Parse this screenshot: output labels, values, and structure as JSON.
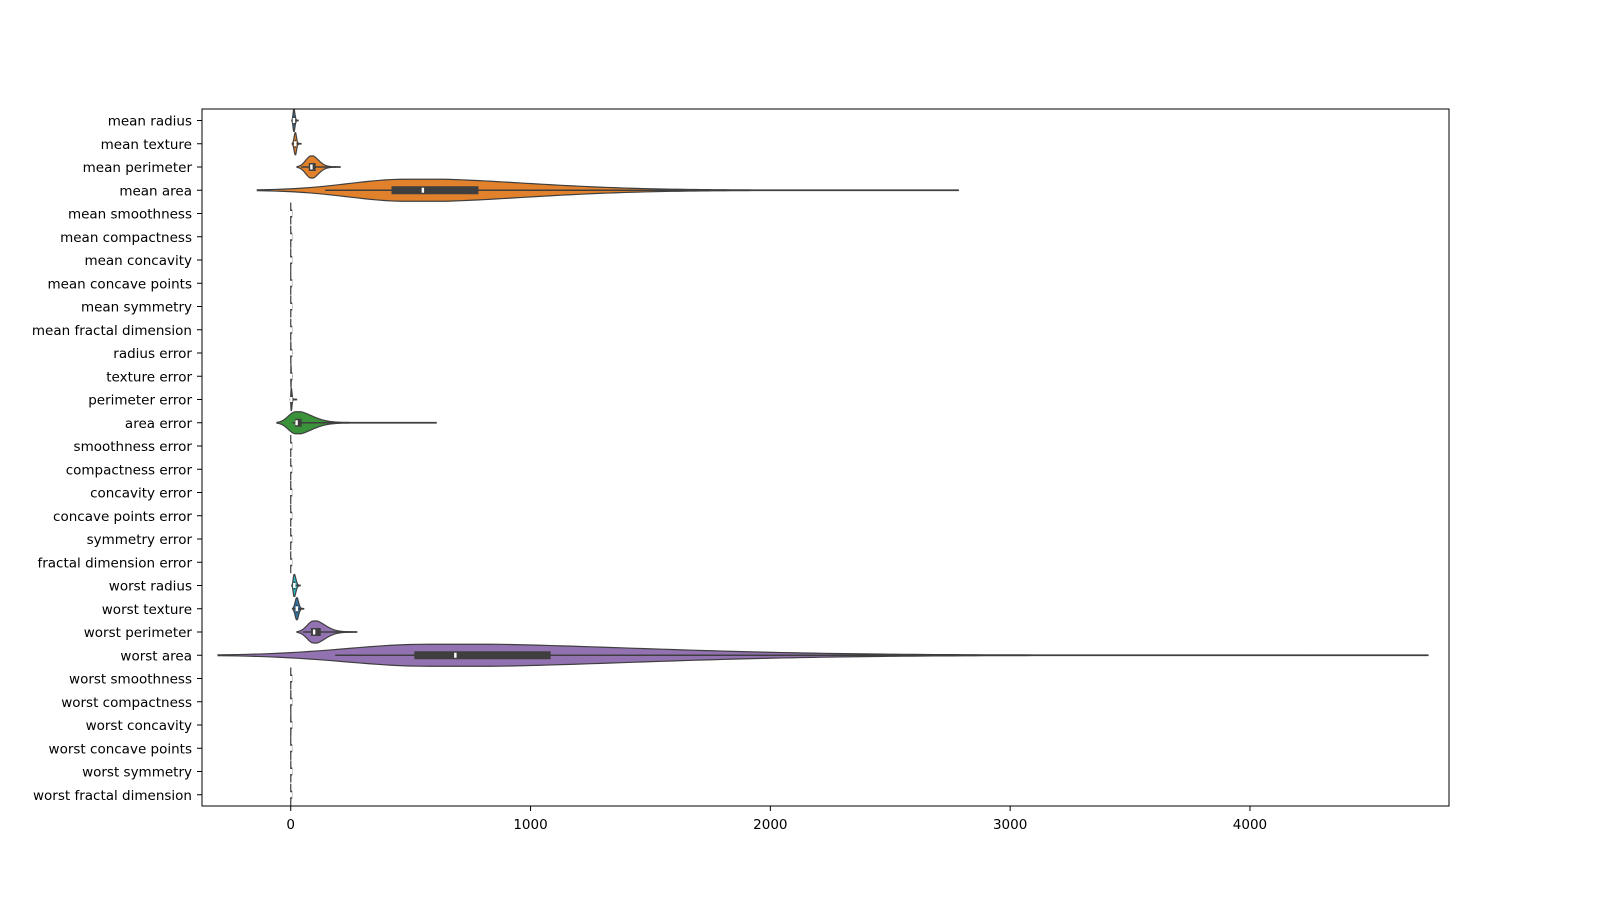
{
  "chart_data": {
    "type": "violin",
    "orientation": "horizontal",
    "title": "",
    "xlabel": "",
    "ylabel": "",
    "xlim": [
      -370,
      4830
    ],
    "xticks": [
      0,
      1000,
      2000,
      3000,
      4000
    ],
    "grid": false,
    "legend": "none",
    "series": [
      {
        "name": "mean radius",
        "color": "#3274a1",
        "min": 6.98,
        "q1": 11.7,
        "median": 13.37,
        "q3": 15.78,
        "max": 28.11,
        "mode": 13.0
      },
      {
        "name": "mean texture",
        "color": "#e1812c",
        "min": 9.71,
        "q1": 16.17,
        "median": 18.84,
        "q3": 21.8,
        "max": 39.28,
        "mode": 19.0
      },
      {
        "name": "mean perimeter",
        "color": "#e1812c",
        "min": 43.79,
        "q1": 75.17,
        "median": 86.24,
        "q3": 104.1,
        "max": 188.5,
        "mode": 85.0
      },
      {
        "name": "mean area",
        "color": "#e1812c",
        "min": 143.5,
        "q1": 420.3,
        "median": 551.1,
        "q3": 782.7,
        "max": 2501.0,
        "mode": 480.0
      },
      {
        "name": "mean smoothness",
        "color": "#3a923a",
        "min": 0.05,
        "q1": 0.086,
        "median": 0.096,
        "q3": 0.105,
        "max": 0.163,
        "mode": 0.096
      },
      {
        "name": "mean compactness",
        "color": "#c03d3e",
        "min": 0.019,
        "q1": 0.065,
        "median": 0.093,
        "q3": 0.13,
        "max": 0.345,
        "mode": 0.08
      },
      {
        "name": "mean concavity",
        "color": "#9372b2",
        "min": 0.0,
        "q1": 0.03,
        "median": 0.062,
        "q3": 0.131,
        "max": 0.427,
        "mode": 0.03
      },
      {
        "name": "mean concave points",
        "color": "#845b53",
        "min": 0.0,
        "q1": 0.02,
        "median": 0.034,
        "q3": 0.074,
        "max": 0.201,
        "mode": 0.02
      },
      {
        "name": "mean symmetry",
        "color": "#d684bd",
        "min": 0.106,
        "q1": 0.162,
        "median": 0.179,
        "q3": 0.196,
        "max": 0.304,
        "mode": 0.18
      },
      {
        "name": "mean fractal dimension",
        "color": "#7f7f7f",
        "min": 0.05,
        "q1": 0.058,
        "median": 0.062,
        "q3": 0.066,
        "max": 0.097,
        "mode": 0.061
      },
      {
        "name": "radius error",
        "color": "#a9aa35",
        "min": 0.112,
        "q1": 0.232,
        "median": 0.324,
        "q3": 0.479,
        "max": 2.873,
        "mode": 0.3
      },
      {
        "name": "texture error",
        "color": "#2ebece",
        "min": 0.36,
        "q1": 0.834,
        "median": 1.108,
        "q3": 1.474,
        "max": 4.885,
        "mode": 1.0
      },
      {
        "name": "perimeter error",
        "color": "#3274a1",
        "min": 0.757,
        "q1": 1.606,
        "median": 2.287,
        "q3": 3.357,
        "max": 21.98,
        "mode": 2.0
      },
      {
        "name": "area error",
        "color": "#3a923a",
        "min": 6.802,
        "q1": 17.85,
        "median": 24.53,
        "q3": 45.19,
        "max": 542.2,
        "mode": 20.0
      },
      {
        "name": "smoothness error",
        "color": "#c03d3e",
        "min": 0.002,
        "q1": 0.005,
        "median": 0.006,
        "q3": 0.008,
        "max": 0.031,
        "mode": 0.006
      },
      {
        "name": "compactness error",
        "color": "#9372b2",
        "min": 0.002,
        "q1": 0.013,
        "median": 0.02,
        "q3": 0.032,
        "max": 0.135,
        "mode": 0.015
      },
      {
        "name": "concavity error",
        "color": "#845b53",
        "min": 0.0,
        "q1": 0.015,
        "median": 0.026,
        "q3": 0.042,
        "max": 0.396,
        "mode": 0.02
      },
      {
        "name": "concave points error",
        "color": "#d684bd",
        "min": 0.0,
        "q1": 0.008,
        "median": 0.011,
        "q3": 0.015,
        "max": 0.053,
        "mode": 0.01
      },
      {
        "name": "symmetry error",
        "color": "#7f7f7f",
        "min": 0.008,
        "q1": 0.015,
        "median": 0.019,
        "q3": 0.023,
        "max": 0.079,
        "mode": 0.018
      },
      {
        "name": "fractal dimension error",
        "color": "#a9aa35",
        "min": 0.001,
        "q1": 0.002,
        "median": 0.003,
        "q3": 0.005,
        "max": 0.03,
        "mode": 0.003
      },
      {
        "name": "worst radius",
        "color": "#2ebece",
        "min": 7.93,
        "q1": 13.01,
        "median": 14.97,
        "q3": 18.79,
        "max": 36.04,
        "mode": 14.0
      },
      {
        "name": "worst texture",
        "color": "#3274a1",
        "min": 12.02,
        "q1": 21.08,
        "median": 25.41,
        "q3": 29.72,
        "max": 49.54,
        "mode": 25.0
      },
      {
        "name": "worst perimeter",
        "color": "#9372b2",
        "min": 50.41,
        "q1": 84.11,
        "median": 97.66,
        "q3": 125.4,
        "max": 251.2,
        "mode": 95.0
      },
      {
        "name": "worst area",
        "color": "#9372b2",
        "min": 185.2,
        "q1": 515.3,
        "median": 686.5,
        "q3": 1084.0,
        "max": 4254.0,
        "mode": 570.0
      },
      {
        "name": "worst smoothness",
        "color": "#c03d3e",
        "min": 0.071,
        "q1": 0.117,
        "median": 0.131,
        "q3": 0.146,
        "max": 0.223,
        "mode": 0.13
      },
      {
        "name": "worst compactness",
        "color": "#9372b2",
        "min": 0.027,
        "q1": 0.147,
        "median": 0.212,
        "q3": 0.339,
        "max": 1.058,
        "mode": 0.2
      },
      {
        "name": "worst concavity",
        "color": "#845b53",
        "min": 0.0,
        "q1": 0.115,
        "median": 0.227,
        "q3": 0.383,
        "max": 1.252,
        "mode": 0.2
      },
      {
        "name": "worst concave points",
        "color": "#d684bd",
        "min": 0.0,
        "q1": 0.065,
        "median": 0.1,
        "q3": 0.161,
        "max": 0.291,
        "mode": 0.1
      },
      {
        "name": "worst symmetry",
        "color": "#7f7f7f",
        "min": 0.157,
        "q1": 0.25,
        "median": 0.282,
        "q3": 0.318,
        "max": 0.664,
        "mode": 0.28
      },
      {
        "name": "worst fractal dimension",
        "color": "#a9aa35",
        "min": 0.055,
        "q1": 0.071,
        "median": 0.08,
        "q3": 0.092,
        "max": 0.208,
        "mode": 0.08
      }
    ]
  }
}
